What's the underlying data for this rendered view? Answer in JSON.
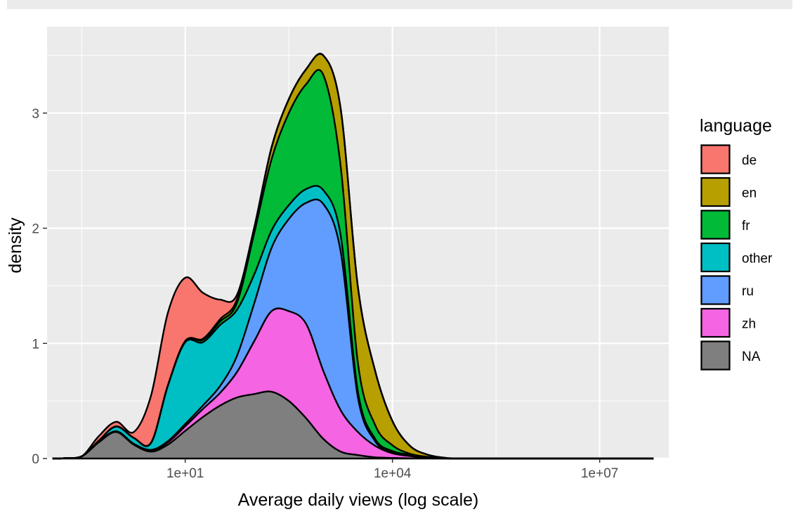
{
  "chart_data": {
    "type": "area",
    "stacked": true,
    "title": "",
    "xlabel": "Average daily views (log scale)",
    "ylabel": "density",
    "x_scale": "log10",
    "xlim": [
      0.1,
      100000000
    ],
    "ylim": [
      0,
      3.75
    ],
    "x_ticks": [
      {
        "value": 10,
        "label": "1e+01"
      },
      {
        "value": 10000,
        "label": "1e+04"
      },
      {
        "value": 10000000,
        "label": "1e+07"
      }
    ],
    "y_ticks": [
      {
        "value": 0,
        "label": "0"
      },
      {
        "value": 1,
        "label": "1"
      },
      {
        "value": 2,
        "label": "2"
      },
      {
        "value": 3,
        "label": "3"
      }
    ],
    "grid": true,
    "legend": {
      "title": "language",
      "position": "right"
    },
    "x": [
      0.12,
      0.18,
      0.32,
      0.56,
      1,
      1.8,
      3.2,
      5.6,
      10,
      18,
      32,
      56,
      100,
      178,
      316,
      562,
      1000,
      1778,
      3162,
      5623,
      10000,
      17783,
      31623,
      56234,
      100000,
      1000000,
      10000000,
      60000000
    ],
    "series": [
      {
        "name": "NA",
        "color": "#7f7f7f",
        "values": [
          0,
          0.003,
          0.02,
          0.14,
          0.23,
          0.12,
          0.06,
          0.12,
          0.24,
          0.36,
          0.46,
          0.53,
          0.56,
          0.58,
          0.5,
          0.35,
          0.17,
          0.06,
          0.03,
          0.01,
          0.005,
          0.002,
          0.001,
          0,
          0,
          0,
          0,
          0
        ]
      },
      {
        "name": "zh",
        "color": "#f564e3",
        "values": [
          0,
          0,
          0,
          0.003,
          0.005,
          0.005,
          0.01,
          0.02,
          0.04,
          0.07,
          0.11,
          0.22,
          0.46,
          0.7,
          0.78,
          0.82,
          0.59,
          0.36,
          0.2,
          0.1,
          0.04,
          0.02,
          0.005,
          0.002,
          0,
          0,
          0,
          0
        ]
      },
      {
        "name": "ru",
        "color": "#619cff",
        "values": [
          0,
          0,
          0,
          0.001,
          0.002,
          0.003,
          0.005,
          0.01,
          0.02,
          0.03,
          0.06,
          0.14,
          0.33,
          0.55,
          0.8,
          1.05,
          1.45,
          1.38,
          0.3,
          0.04,
          0.01,
          0.005,
          0.002,
          0,
          0,
          0,
          0,
          0
        ]
      },
      {
        "name": "other",
        "color": "#00bfc4",
        "values": [
          0,
          0,
          0,
          0.01,
          0.04,
          0.05,
          0.06,
          0.48,
          0.71,
          0.55,
          0.53,
          0.4,
          0.25,
          0.15,
          0.12,
          0.12,
          0.12,
          0.14,
          0.05,
          0.02,
          0.01,
          0.005,
          0.002,
          0,
          0,
          0,
          0,
          0
        ]
      },
      {
        "name": "fr",
        "color": "#00ba38",
        "values": [
          0,
          0,
          0,
          0,
          0.002,
          0.002,
          0.002,
          0.004,
          0.01,
          0.02,
          0.03,
          0.06,
          0.36,
          0.62,
          0.8,
          0.91,
          1.0,
          0.6,
          0.25,
          0.12,
          0.05,
          0.01,
          0.005,
          0,
          0,
          0,
          0,
          0
        ]
      },
      {
        "name": "en",
        "color": "#b79f00",
        "values": [
          0,
          0,
          0,
          0,
          0,
          0,
          0,
          0,
          0,
          0.01,
          0.02,
          0.03,
          0.04,
          0.1,
          0.12,
          0.13,
          0.17,
          0.5,
          0.66,
          0.47,
          0.21,
          0.07,
          0.02,
          0.005,
          0.001,
          0,
          0,
          0
        ]
      },
      {
        "name": "de",
        "color": "#f8766d",
        "values": [
          0,
          0,
          0,
          0.04,
          0.04,
          0.05,
          0.41,
          0.63,
          0.55,
          0.4,
          0.17,
          0.04,
          0.01,
          0.005,
          0.002,
          0.001,
          0,
          0,
          0,
          0,
          0,
          0,
          0,
          0,
          0,
          0,
          0,
          0
        ]
      }
    ],
    "legend_order": [
      "de",
      "en",
      "fr",
      "other",
      "ru",
      "zh",
      "NA"
    ]
  }
}
